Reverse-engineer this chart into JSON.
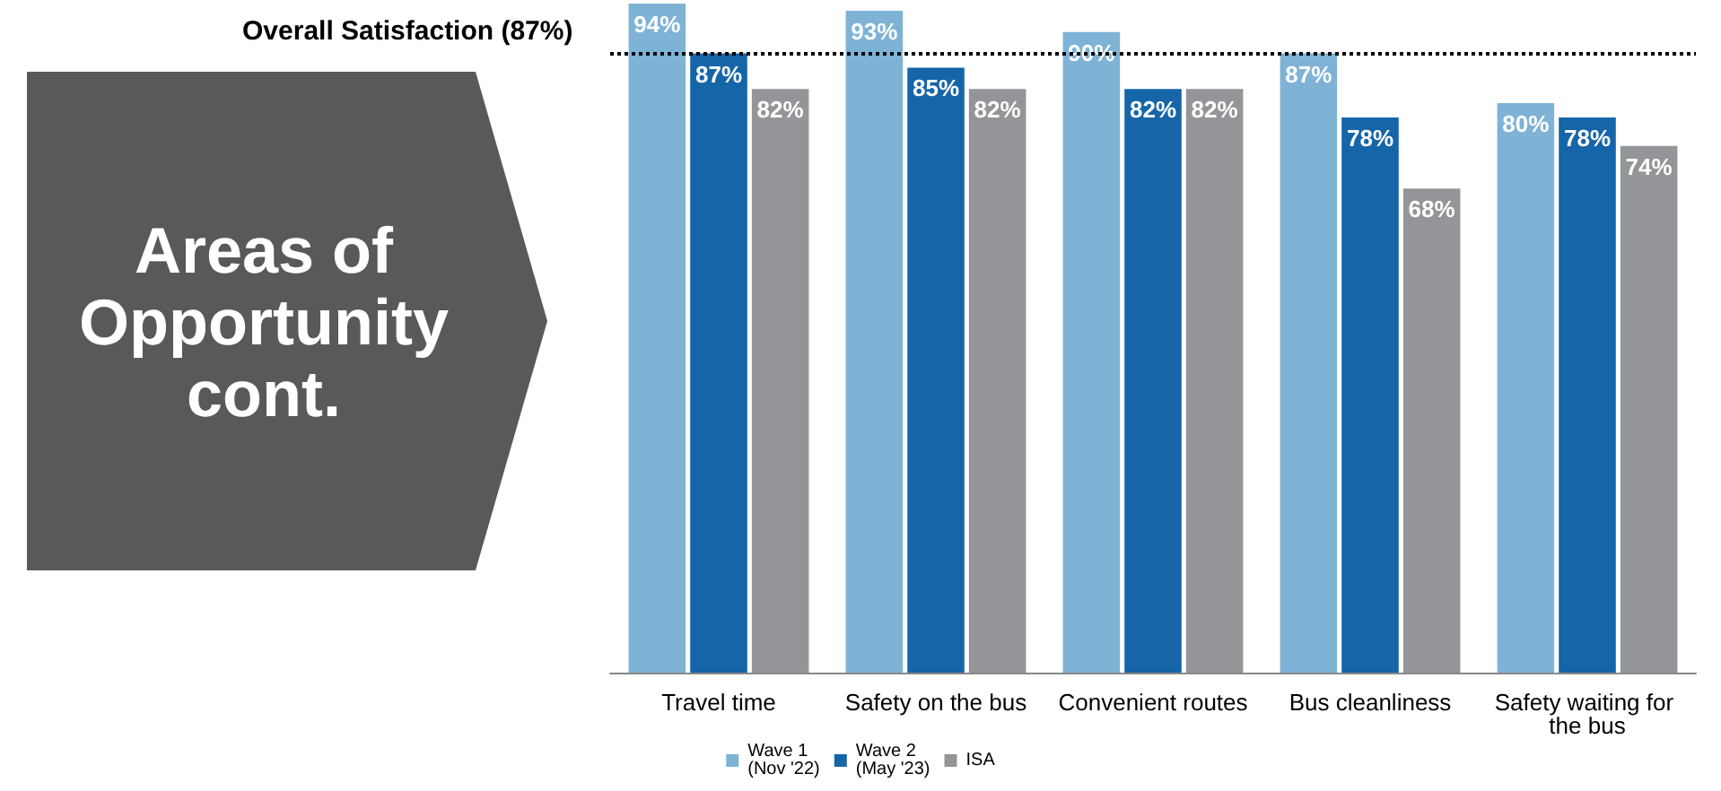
{
  "chart_data": {
    "type": "bar",
    "categories": [
      "Travel time",
      "Safety on the bus",
      "Convenient routes",
      "Bus cleanliness",
      "Safety waiting for the bus"
    ],
    "series": [
      {
        "name": "Wave 1\n(Nov '22)",
        "color": "#7fb3d6",
        "values": [
          94,
          93,
          90,
          87,
          80
        ],
        "value_labels": [
          "94%",
          "93%",
          "90%",
          "87%",
          "80%"
        ]
      },
      {
        "name": "Wave 2\n(May '23)",
        "color": "#1565a8",
        "values": [
          87,
          85,
          82,
          78,
          78
        ],
        "value_labels": [
          "87%",
          "85%",
          "82%",
          "78%",
          "78%"
        ]
      },
      {
        "name": "ISA",
        "color": "#949598",
        "values": [
          82,
          82,
          82,
          68,
          74
        ],
        "value_labels": [
          "82%",
          "82%",
          "82%",
          "68%",
          "74%"
        ]
      }
    ],
    "tick_labels": "x",
    "grid": false,
    "legend": "bottom",
    "ref_lines": [
      {
        "axis": "y",
        "value": 87,
        "label": "Overall Satisfaction (87%)",
        "color": "#000000",
        "line_style": "dotted"
      }
    ],
    "annotations": [
      "Areas of Opportunity cont."
    ]
  }
}
